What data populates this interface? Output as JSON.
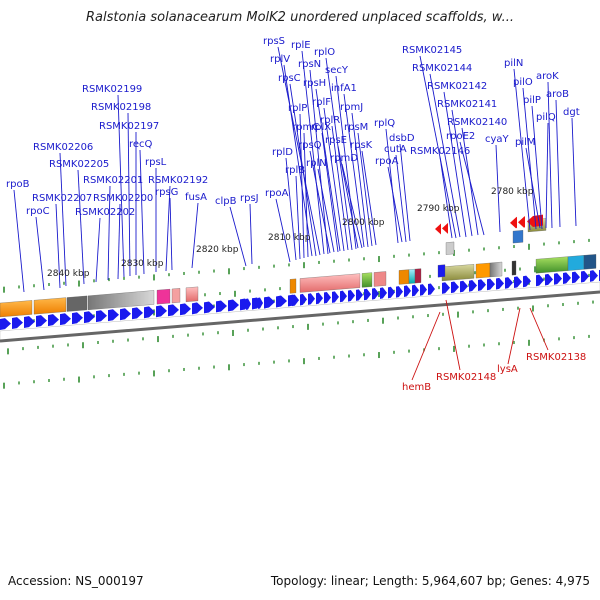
{
  "title": "Ralstonia solanacearum MolK2 unordered unplaced scaffolds, w...",
  "accession": "Accession: NS_000197",
  "topology": "Topology: linear; Length: 5,964,607 bp; Genes: 4,975",
  "colors": {
    "forward_arrow": "#1a1aee",
    "reverse_arrow": "#ee1111",
    "label_forward": "#1a1acc",
    "label_reverse": "#cc1111",
    "tick": "#2e8b2e",
    "backbone": "#666666"
  },
  "kbp_ticks": [
    "2840 kbp",
    "2830 kbp",
    "2820 kbp",
    "2810 kbp",
    "2800 kbp",
    "2790 kbp",
    "2780 kbp"
  ],
  "forward_genes": [
    "rpoB",
    "rpoC",
    "RSMK02207",
    "RSMK02206",
    "RSMK02205",
    "RSMK02202",
    "RSMK02201",
    "RSMK02200",
    "RSMK02199",
    "RSMK02198",
    "RSMK02197",
    "recQ",
    "rpsL",
    "RSMK02192",
    "rpsG",
    "fusA",
    "clpB",
    "rpsJ",
    "rpoA",
    "rplD",
    "rplB",
    "rplP",
    "rpmC",
    "rplV",
    "rpsC",
    "rpsS",
    "rplE",
    "rpsN",
    "rpsQ",
    "rplN",
    "rplX",
    "rpsH",
    "rplF",
    "rplR",
    "rplO",
    "secY",
    "rpsE",
    "rpmD",
    "infA1",
    "rpmJ",
    "rpsM",
    "rpsK",
    "rplQ",
    "rpoA",
    "cutA",
    "dsbD",
    "RSMK02146",
    "RSMK02145",
    "RSMK02144",
    "RSMK02142",
    "RSMK02141",
    "RSMK02140",
    "rpoE2",
    "cyaY",
    "pilN",
    "pilO",
    "pilP",
    "aroK",
    "aroB",
    "pilQ",
    "dgt",
    "pilM"
  ],
  "reverse_genes": [
    "hemB",
    "RSMK02148",
    "lysA",
    "RSMK02138"
  ]
}
